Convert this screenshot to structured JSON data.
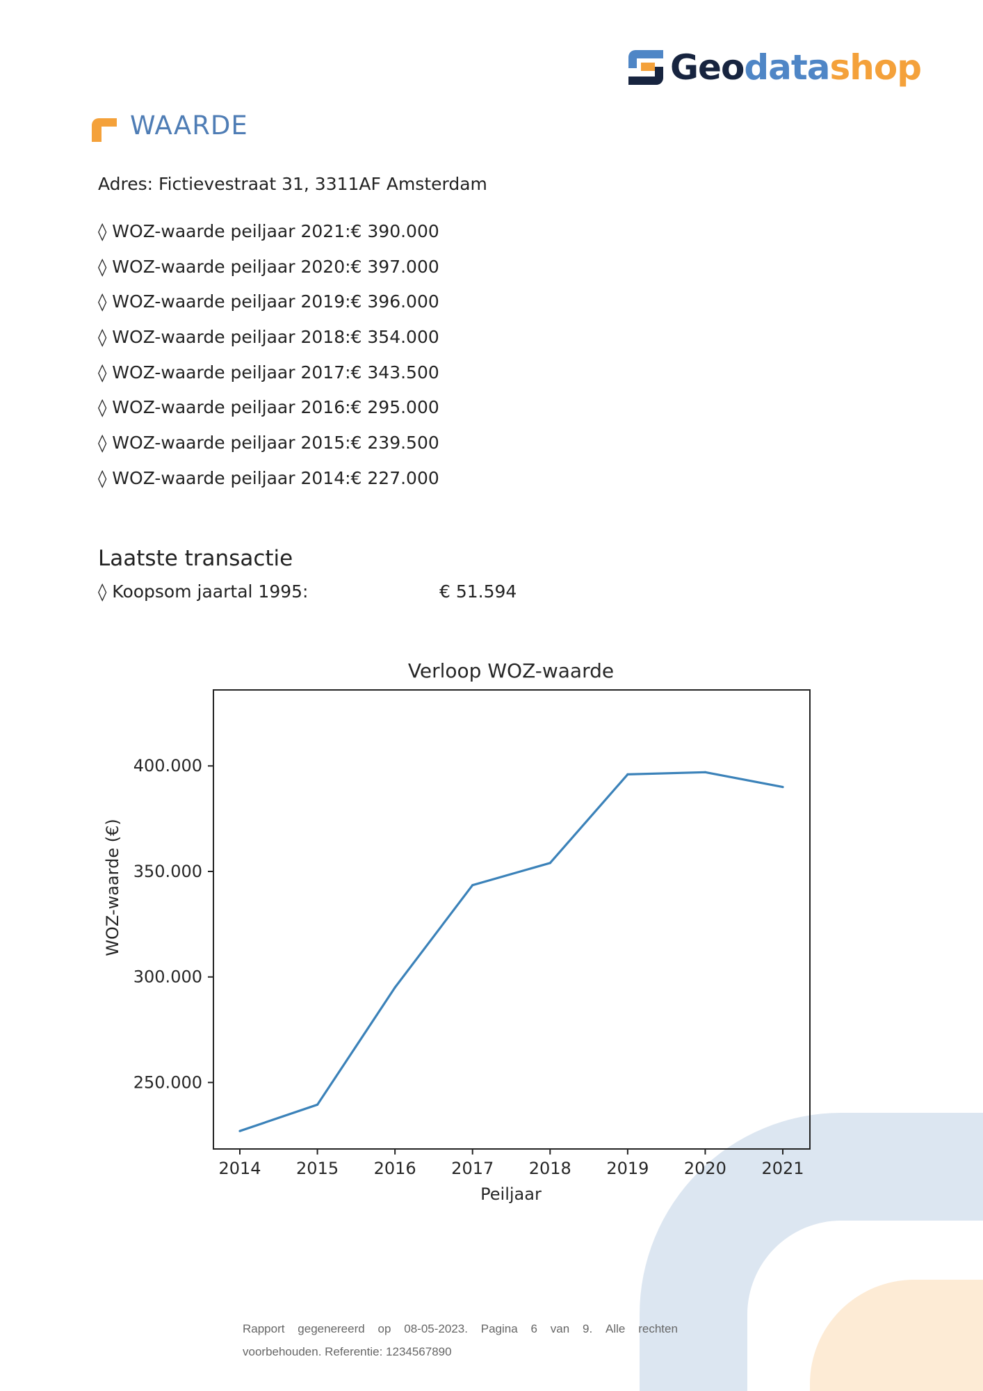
{
  "logo": {
    "part1": "Geo",
    "part2": "data",
    "part3": "shop"
  },
  "section": {
    "title": "WAARDE"
  },
  "address": "Adres: Fictievestraat 31, 3311AF Amsterdam",
  "woz_values": [
    "◊ WOZ-waarde peiljaar 2021:€ 390.000",
    "◊ WOZ-waarde peiljaar 2020:€ 397.000",
    "◊ WOZ-waarde peiljaar 2019:€ 396.000",
    "◊ WOZ-waarde peiljaar 2018:€ 354.000",
    "◊ WOZ-waarde peiljaar 2017:€ 343.500",
    "◊ WOZ-waarde peiljaar 2016:€ 295.000",
    "◊ WOZ-waarde peiljaar 2015:€ 239.500",
    "◊ WOZ-waarde peiljaar 2014:€ 227.000"
  ],
  "transaction": {
    "title": "Laatste transactie",
    "label": "◊ Koopsom jaartal 1995:",
    "value": "€ 51.594"
  },
  "chart_data": {
    "type": "line",
    "title": "Verloop WOZ-waarde",
    "xlabel": "Peiljaar",
    "ylabel": "WOZ-waarde (€)",
    "x": [
      2014,
      2015,
      2016,
      2017,
      2018,
      2019,
      2020,
      2021
    ],
    "values": [
      227000,
      239500,
      295000,
      343500,
      354000,
      396000,
      397000,
      390000
    ],
    "ylim": [
      218500,
      436000
    ],
    "yticks": [
      250000,
      300000,
      350000,
      400000
    ],
    "ytick_labels": [
      "250.000",
      "300.000",
      "350.000",
      "400.000"
    ],
    "xtick_labels": [
      "2014",
      "2015",
      "2016",
      "2017",
      "2018",
      "2019",
      "2020",
      "2021"
    ],
    "line_color": "#3b82b9",
    "grid": false
  },
  "footer": {
    "line1_words": [
      "Rapport",
      "gegenereerd",
      "op",
      "08-05-2023.",
      "Pagina",
      "6",
      "van",
      "9.",
      "Alle",
      "rechten"
    ],
    "line2": "voorbehouden. Referentie: 1234567890"
  },
  "colors": {
    "brand_blue": "#4f86c6",
    "brand_orange": "#f4a13a",
    "brand_navy": "#17243f"
  }
}
